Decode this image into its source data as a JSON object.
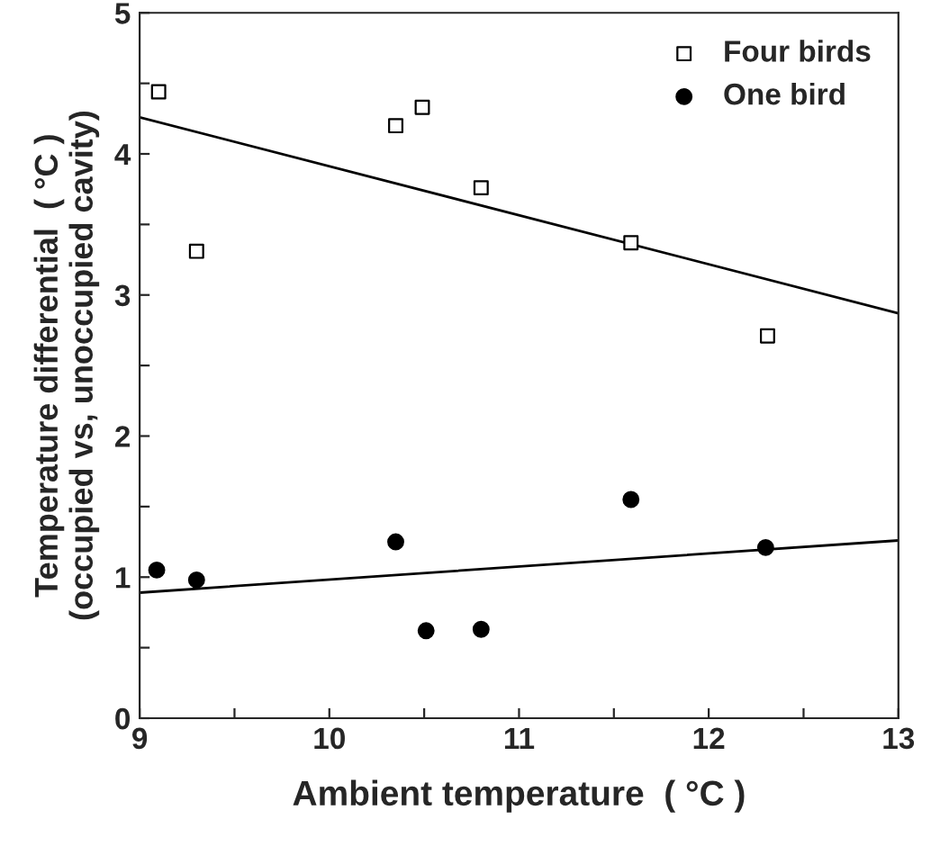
{
  "chart_data": {
    "type": "scatter",
    "xlabel": "Ambient temperature  ( °C )",
    "ylabel": "Temperature differential  ( °C )\n(occupied vs, unoccupied cavity)",
    "xlim": [
      9,
      13
    ],
    "ylim": [
      0,
      5
    ],
    "xticks": [
      9,
      {
        "value": 9.5,
        "label": null
      },
      10,
      {
        "value": 10.5,
        "label": null
      },
      11,
      {
        "value": 11.5,
        "label": null
      },
      12,
      {
        "value": 12.5,
        "label": null
      },
      13
    ],
    "yticks": [
      0,
      {
        "value": 0.5,
        "label": null
      },
      1,
      {
        "value": 1.5,
        "label": null
      },
      2,
      {
        "value": 2.5,
        "label": null
      },
      3,
      {
        "value": 3.5,
        "label": null
      },
      4,
      {
        "value": 4.5,
        "label": null
      },
      5
    ],
    "legend": "top right",
    "grid": false,
    "series": [
      {
        "name": "Four birds",
        "marker": "square",
        "color": "#000000",
        "x": [
          9.1,
          9.3,
          10.35,
          10.49,
          10.8,
          11.59,
          12.31
        ],
        "values": [
          4.44,
          3.31,
          4.2,
          4.33,
          3.76,
          3.37,
          2.71
        ]
      },
      {
        "name": "One bird",
        "marker": "circle",
        "color": "#000000",
        "x": [
          9.09,
          9.3,
          10.35,
          10.51,
          10.8,
          11.59,
          12.3
        ],
        "values": [
          1.05,
          0.98,
          1.25,
          0.62,
          0.63,
          1.55,
          1.21
        ]
      },
      {
        "type": "line",
        "color": "#000000",
        "x": [
          9,
          13
        ],
        "values": [
          4.26,
          2.87
        ]
      },
      {
        "type": "line",
        "color": "#000000",
        "x": [
          9,
          13
        ],
        "values": [
          0.89,
          1.26
        ]
      }
    ]
  }
}
